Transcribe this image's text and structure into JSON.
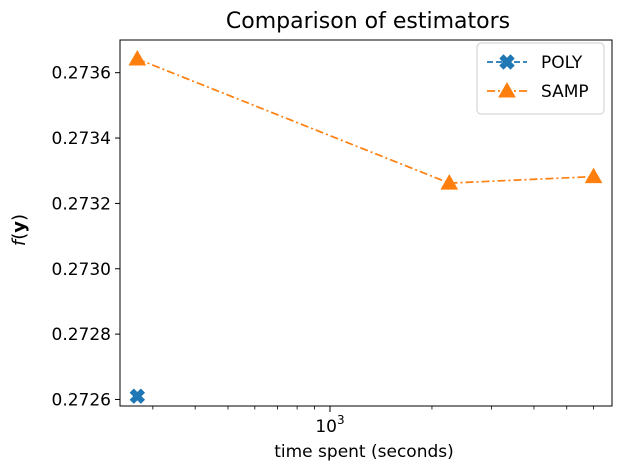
{
  "chart_data": {
    "type": "line",
    "title": "Comparison of estimators",
    "xlabel": "time spent (seconds)",
    "ylabel_func": "f",
    "ylabel_arg": "y",
    "x_scale": "log",
    "xlim": [
      240,
      6800
    ],
    "ylim": [
      0.27258,
      0.2737
    ],
    "y_ticks": [
      0.2726,
      0.2728,
      0.273,
      0.2732,
      0.2734,
      0.2736
    ],
    "y_tick_labels": [
      "0.2726",
      "0.2728",
      "0.2730",
      "0.2732",
      "0.2734",
      "0.2736"
    ],
    "x_tick_base": "10",
    "x_tick_exp": "3",
    "x_major_tick": 1000,
    "x_minor_ticks": [
      300,
      400,
      500,
      600,
      700,
      800,
      900,
      2000,
      3000,
      4000,
      5000,
      6000
    ],
    "grid": false,
    "legend_position": "top-right",
    "series": [
      {
        "name": "POLY",
        "color": "#1f77b4",
        "marker": "X",
        "linestyle": "dashed",
        "points": [
          {
            "x": 270,
            "y": 0.27261
          }
        ]
      },
      {
        "name": "SAMP",
        "color": "#ff7f0e",
        "marker": "triangle",
        "linestyle": "dashdot",
        "points": [
          {
            "x": 270,
            "y": 0.273642
          },
          {
            "x": 2250,
            "y": 0.273262
          },
          {
            "x": 6000,
            "y": 0.273282
          }
        ]
      }
    ]
  }
}
